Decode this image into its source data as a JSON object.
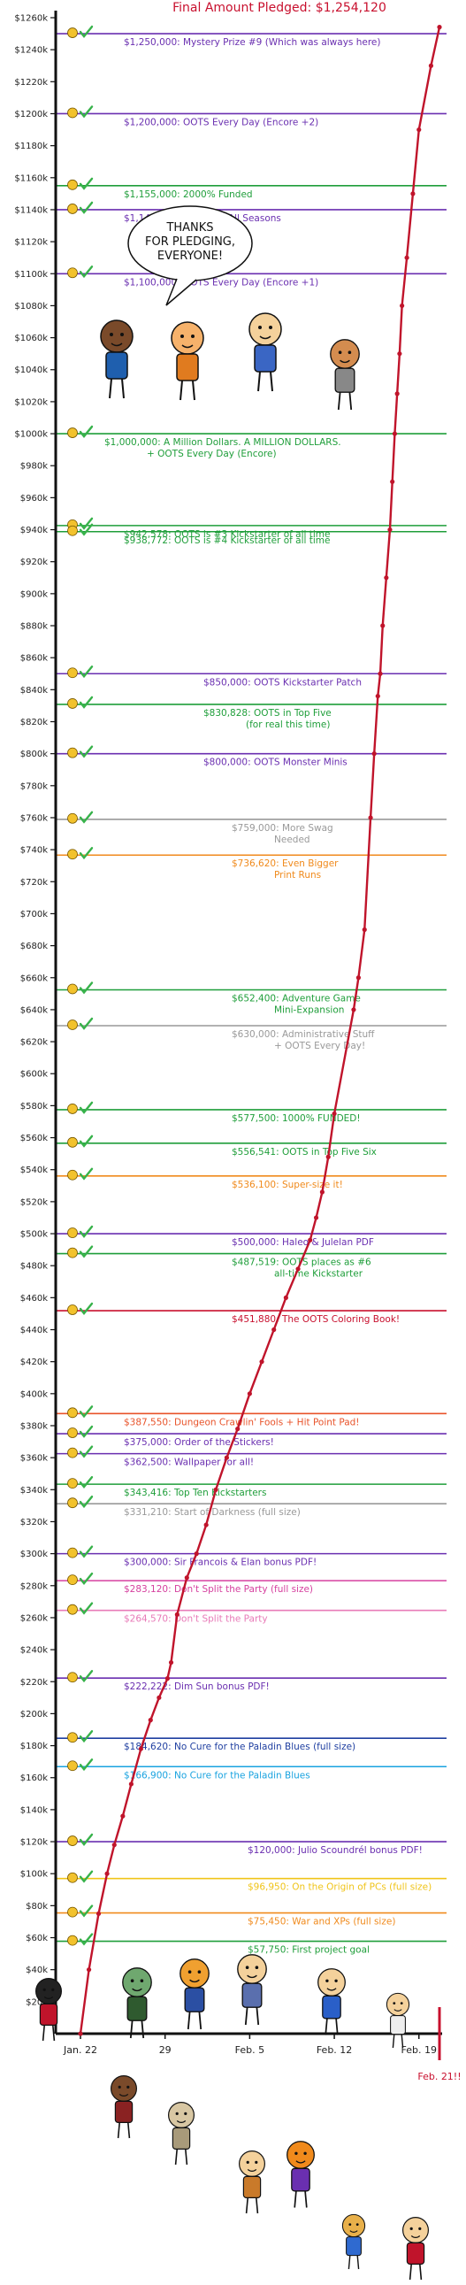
{
  "chart_data": {
    "type": "line",
    "title": "Final Amount Pledged: $1,254,120",
    "ylim": [
      0,
      1260000
    ],
    "y_tick_labels": [
      "$20k",
      "$40k",
      "$60k",
      "$80k",
      "$100k",
      "$120k",
      "$140k",
      "$160k",
      "$180k",
      "$200k",
      "$220k",
      "$240k",
      "$260k",
      "$280k",
      "$300k",
      "$320k",
      "$340k",
      "$360k",
      "$380k",
      "$400k",
      "$420k",
      "$440k",
      "$460k",
      "$480k",
      "$500k",
      "$520k",
      "$540k",
      "$560k",
      "$580k",
      "$600k",
      "$620k",
      "$640k",
      "$660k",
      "$680k",
      "$700k",
      "$720k",
      "$740k",
      "$760k",
      "$780k",
      "$800k",
      "$820k",
      "$840k",
      "$860k",
      "$880k",
      "$900k",
      "$920k",
      "$940k",
      "$960k",
      "$980k",
      "$1000k",
      "$1020k",
      "$1040k",
      "$1060k",
      "$1080k",
      "$1100k",
      "$1120k",
      "$1140k",
      "$1160k",
      "$1180k",
      "$1200k",
      "$1220k",
      "$1240k",
      "$1260k"
    ],
    "x_tick_labels": [
      "Jan. 22",
      "29",
      "Feb. 5",
      "Feb. 12",
      "Feb. 19"
    ],
    "x_end_label": "Feb. 21!!",
    "series": [
      {
        "x": [
          0,
          0.7,
          1.5,
          2.2,
          2.8,
          3.5,
          4.2,
          5,
          5.8,
          6.5,
          7.2,
          7.5,
          8,
          8.8,
          9.6,
          10.4,
          11.2,
          12.1,
          13,
          14,
          15,
          16,
          17,
          18,
          19,
          19.5,
          20,
          20.5,
          21,
          22.6,
          23,
          23.5,
          24,
          24.3,
          24.6,
          24.8,
          25,
          25.3,
          25.6,
          25.8,
          26,
          26.2,
          26.4,
          26.6,
          27,
          27.5,
          28,
          29,
          29.7
        ],
        "y": [
          0,
          40000,
          75000,
          100000,
          118000,
          136000,
          156000,
          178000,
          196000,
          210000,
          222000,
          232000,
          262000,
          285000,
          300000,
          318000,
          340000,
          360000,
          378000,
          400000,
          420000,
          440000,
          460000,
          478000,
          496000,
          510000,
          526000,
          548000,
          575000,
          640000,
          660000,
          690000,
          760000,
          800000,
          836000,
          850000,
          880000,
          910000,
          940000,
          970000,
          1000000,
          1025000,
          1050000,
          1080000,
          1110000,
          1150000,
          1190000,
          1230000,
          1254120
        ]
      }
    ],
    "goals": [
      {
        "value": 1250000,
        "label": "$1,250,000: Mystery Prize #9 (Which was always here)",
        "color": "#6a2fb0"
      },
      {
        "value": 1200000,
        "label": "$1,200,000: OOTS Every Day (Encore +2)",
        "color": "#6a2fb0"
      },
      {
        "value": 1155000,
        "label": "$1,155,000: 2000% Funded",
        "color": "#1f9e3a"
      },
      {
        "value": 1140000,
        "label": "$1,140,000: Audio for All Seasons",
        "color": "#6a2fb0"
      },
      {
        "value": 1100000,
        "label": "$1,100,000: OOTS Every Day (Encore +1)",
        "color": "#6a2fb0"
      },
      {
        "value": 1000000,
        "label": "$1,000,000: A Million Dollars. A MILLION DOLLARS.",
        "label2": "+ OOTS Every Day (Encore)",
        "color": "#1f9e3a"
      },
      {
        "value": 942578,
        "label": "$942,578: OOTS is #3 Kickstarter of all time",
        "color": "#1f9e3a"
      },
      {
        "value": 938772,
        "label": "$938,772: OOTS is #4 Kickstarter of all time",
        "color": "#1f9e3a"
      },
      {
        "value": 850000,
        "label": "$850,000: OOTS Kickstarter Patch",
        "color": "#6a2fb0"
      },
      {
        "value": 830828,
        "label": "$830,828: OOTS in Top Five",
        "label2": "(for real this time)",
        "color": "#1f9e3a"
      },
      {
        "value": 800000,
        "label": "$800,000: OOTS Monster Minis",
        "color": "#6a2fb0"
      },
      {
        "value": 759000,
        "label": "$759,000: More Swag",
        "label2": "Needed",
        "color": "#999999"
      },
      {
        "value": 736620,
        "label": "$736,620: Even Bigger",
        "label2": "Print Runs",
        "color": "#f08a1c"
      },
      {
        "value": 652400,
        "label": "$652,400: Adventure Game",
        "label2": "Mini-Expansion",
        "color": "#1f9e3a"
      },
      {
        "value": 630000,
        "label": "$630,000: Administrative Stuff",
        "label2": "+ OOTS Every Day!",
        "color": "#999999"
      },
      {
        "value": 577500,
        "label": "$577,500: 1000% FUNDED!",
        "color": "#1f9e3a"
      },
      {
        "value": 556541,
        "label": "$556,541: OOTS in Top Five Six",
        "color": "#1f9e3a"
      },
      {
        "value": 536100,
        "label": "$536,100: Super-size it!",
        "color": "#f08a1c"
      },
      {
        "value": 500000,
        "label": "$500,000: Haleo & Julelan PDF",
        "color": "#6a2fb0"
      },
      {
        "value": 487519,
        "label": "$487,519: OOTS places as #6",
        "label2": "all-time Kickstarter",
        "color": "#1f9e3a"
      },
      {
        "value": 451880,
        "label": "$451,880: The OOTS Coloring Book!",
        "color": "#c8102e"
      },
      {
        "value": 387550,
        "label": "$387,550: Dungeon Crawlin' Fools + Hit Point Pad!",
        "color": "#e8532a"
      },
      {
        "value": 375000,
        "label": "$375,000: Order of the Stickers!",
        "color": "#6a2fb0"
      },
      {
        "value": 362500,
        "label": "$362,500: Wallpaper for all!",
        "color": "#6a2fb0"
      },
      {
        "value": 343416,
        "label": "$343,416: Top Ten Kickstarters",
        "color": "#1f9e3a"
      },
      {
        "value": 331210,
        "label": "$331,210: Start of Darkness (full size)",
        "color": "#999999"
      },
      {
        "value": 300000,
        "label": "$300,000: Sir Francois & Elan bonus PDF!",
        "color": "#6a2fb0"
      },
      {
        "value": 283120,
        "label": "$283,120: Don't Split the Party (full size)",
        "color": "#d6409f"
      },
      {
        "value": 264570,
        "label": "$264,570: Don't Split the Party",
        "color": "#e87bb8"
      },
      {
        "value": 222222,
        "label": "$222,222: Dim Sun bonus PDF!",
        "color": "#6a2fb0"
      },
      {
        "value": 184620,
        "label": "$184,620: No Cure for the Paladin Blues (full size)",
        "color": "#1f3fa0"
      },
      {
        "value": 166900,
        "label": "$166,900: No Cure for the Paladin Blues",
        "color": "#1aa3e0"
      },
      {
        "value": 120000,
        "label": "$120,000: Julio Scoundrél bonus PDF!",
        "color": "#6a2fb0"
      },
      {
        "value": 96950,
        "label": "$96,950: On the Origin of PCs (full size)",
        "color": "#f0c419"
      },
      {
        "value": 75450,
        "label": "$75,450: War and XPs (full size)",
        "color": "#f08a1c"
      },
      {
        "value": 57750,
        "label": "$57,750: First project goal",
        "color": "#1f9e3a"
      }
    ],
    "grid": false,
    "legend": "none"
  },
  "speech_bubble": "THANKS FOR PLEDGING, EVERYONE!",
  "colors": {
    "line": "#c0142b",
    "axis": "#111111",
    "check": "#37b24a",
    "coin": "#f2c22d",
    "title": "#c8102e"
  }
}
